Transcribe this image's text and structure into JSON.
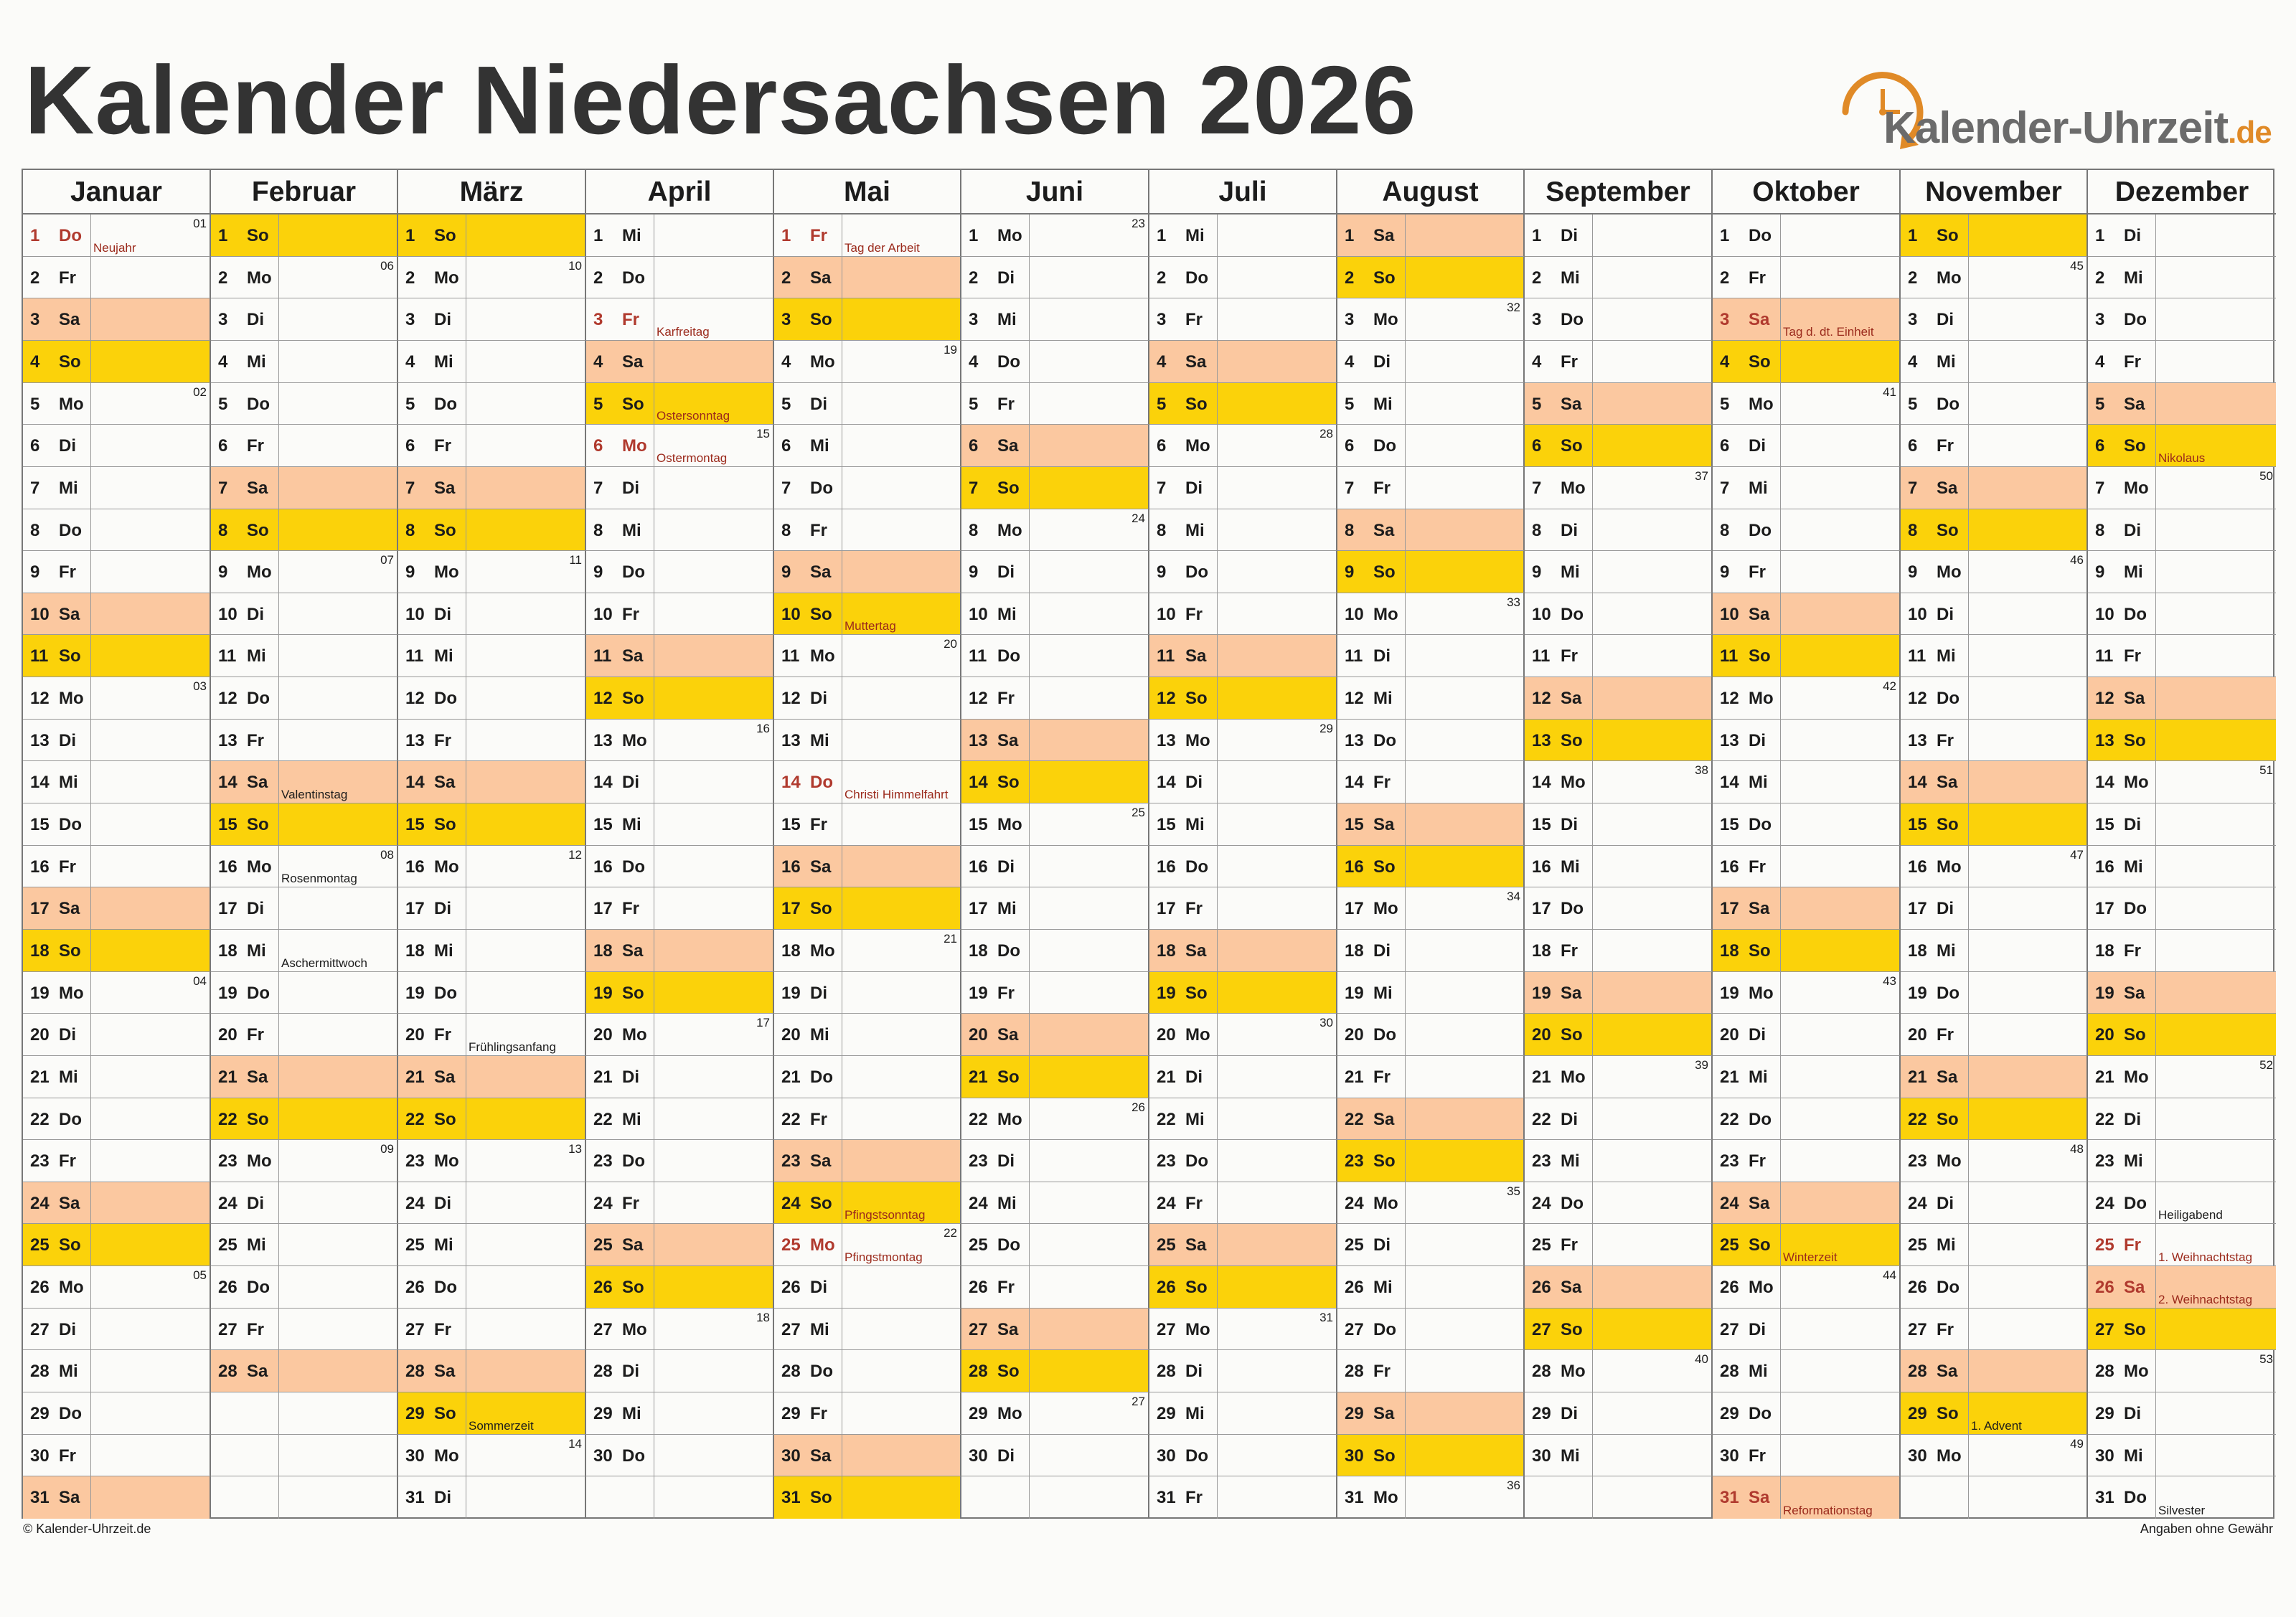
{
  "title": "Kalender Niedersachsen 2026",
  "logo": {
    "text": "Kalender-Uhrzeit",
    "domain": ".de",
    "icon": "clock-arrow-icon",
    "accent": "#e08a27"
  },
  "footer": {
    "copyright": "© Kalender-Uhrzeit.de",
    "disclaimer": "Angaben ohne Gewähr"
  },
  "colors": {
    "saturday": "#fbc8a0",
    "sunday": "#fbd20a",
    "holiday_text": "#b03a2e"
  },
  "weekdays": [
    "Mo",
    "Di",
    "Mi",
    "Do",
    "Fr",
    "Sa",
    "So"
  ],
  "months": [
    {
      "name": "Januar",
      "days": 31,
      "first_weekday": 3
    },
    {
      "name": "Februar",
      "days": 28,
      "first_weekday": 6
    },
    {
      "name": "März",
      "days": 31,
      "first_weekday": 6
    },
    {
      "name": "April",
      "days": 30,
      "first_weekday": 2
    },
    {
      "name": "Mai",
      "days": 31,
      "first_weekday": 4
    },
    {
      "name": "Juni",
      "days": 30,
      "first_weekday": 0
    },
    {
      "name": "Juli",
      "days": 31,
      "first_weekday": 2
    },
    {
      "name": "August",
      "days": 31,
      "first_weekday": 5
    },
    {
      "name": "September",
      "days": 30,
      "first_weekday": 1
    },
    {
      "name": "Oktober",
      "days": 31,
      "first_weekday": 3
    },
    {
      "name": "November",
      "days": 30,
      "first_weekday": 6
    },
    {
      "name": "Dezember",
      "days": 31,
      "first_weekday": 1
    }
  ],
  "week_numbers": {
    "0": {
      "1": "01",
      "5": "02",
      "12": "03",
      "19": "04",
      "26": "05"
    },
    "1": {
      "2": "06",
      "9": "07",
      "16": "08",
      "23": "09"
    },
    "2": {
      "2": "10",
      "9": "11",
      "16": "12",
      "23": "13",
      "30": "14"
    },
    "3": {
      "6": "15",
      "13": "16",
      "20": "17",
      "27": "18"
    },
    "4": {
      "4": "19",
      "11": "20",
      "18": "21",
      "25": "22"
    },
    "5": {
      "1": "23",
      "8": "24",
      "15": "25",
      "22": "26",
      "29": "27"
    },
    "6": {
      "6": "28",
      "13": "29",
      "20": "30",
      "27": "31"
    },
    "7": {
      "3": "32",
      "10": "33",
      "17": "34",
      "24": "35",
      "31": "36"
    },
    "8": {
      "7": "37",
      "14": "38",
      "21": "39",
      "28": "40"
    },
    "9": {
      "5": "41",
      "12": "42",
      "19": "43",
      "26": "44"
    },
    "10": {
      "2": "45",
      "9": "46",
      "16": "47",
      "23": "48",
      "30": "49"
    },
    "11": {
      "7": "50",
      "14": "51",
      "21": "52",
      "28": "53"
    }
  },
  "holidays": {
    "0": {
      "1": "Neujahr"
    },
    "3": {
      "3": "Karfreitag",
      "6": "Ostermontag"
    },
    "4": {
      "1": "Tag der Arbeit",
      "14": "Christi Himmelfahrt",
      "25": "Pfingstmontag"
    },
    "9": {
      "3": "Tag d. dt. Einheit",
      "31": "Reformationstag"
    },
    "11": {
      "25": "1. Weihnachtstag",
      "26": "2. Weihnachtstag"
    }
  },
  "notes": {
    "1": {
      "14": "Valentinstag",
      "16": "Rosenmontag",
      "18": "Aschermittwoch"
    },
    "2": {
      "20": "Frühlingsanfang",
      "29": "Sommerzeit"
    },
    "3": {
      "5": "Ostersonntag"
    },
    "4": {
      "10": "Muttertag",
      "24": "Pfingstsonntag"
    },
    "9": {
      "25": "Winterzeit"
    },
    "10": {
      "29": "1. Advent"
    },
    "11": {
      "6": "Nikolaus",
      "24": "Heiligabend",
      "31": "Silvester"
    }
  },
  "red_notes": {
    "3": [
      "5"
    ],
    "4": [
      "10",
      "24"
    ],
    "9": [
      "25"
    ],
    "11": [
      "6"
    ]
  }
}
